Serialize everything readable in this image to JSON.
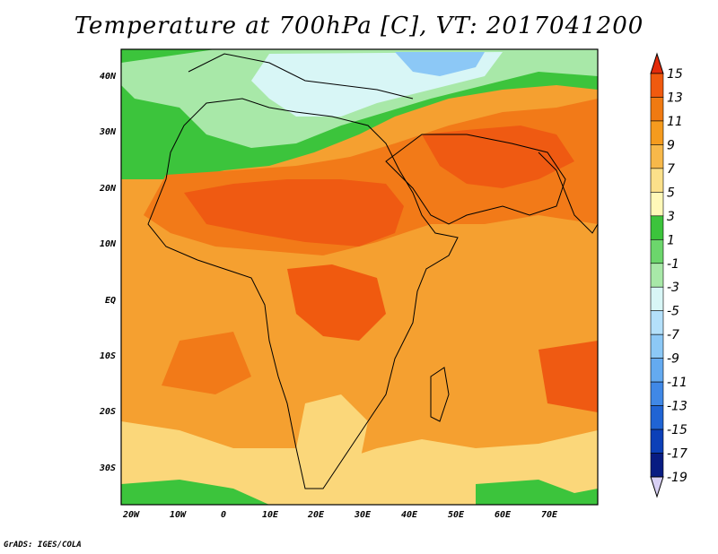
{
  "title": "Temperature at 700hPa [C], VT: 2017041200",
  "credit": "GrADS: IGES/COLA",
  "axes": {
    "x_ticks": [
      "20W",
      "10W",
      "0",
      "10E",
      "20E",
      "30E",
      "40E",
      "50E",
      "60E",
      "70E"
    ],
    "y_ticks": [
      "40N",
      "30N",
      "20N",
      "10N",
      "EQ",
      "10S",
      "20S",
      "30S"
    ]
  },
  "colorbar": {
    "labels": [
      "15",
      "13",
      "11",
      "9",
      "7",
      "5",
      "3",
      "1",
      "-1",
      "-3",
      "-5",
      "-7",
      "-9",
      "-11",
      "-13",
      "-15",
      "-17",
      "-19"
    ],
    "colors": [
      "#e32b0b",
      "#f05a0f",
      "#f07a12",
      "#f59b1e",
      "#f7b84a",
      "#fbe08a",
      "#fff8b8",
      "#3cc43c",
      "#6cd66c",
      "#a8e8a8",
      "#d8f6f6",
      "#b4e0fa",
      "#8cc8f6",
      "#64aaf0",
      "#4088e6",
      "#2064d4",
      "#0c40b8",
      "#081c82",
      "#d8d0f4"
    ]
  },
  "map_colors": {
    "ocean_base": "#f5a030",
    "warm_cells": "#f27a18",
    "hot_cells": "#ef5a12",
    "cool_yellow": "#fbd77a",
    "green": "#3cc43c",
    "light_green": "#a8e8a8",
    "pale_cyan": "#d8f6f6",
    "blue": "#8cc8f6"
  }
}
